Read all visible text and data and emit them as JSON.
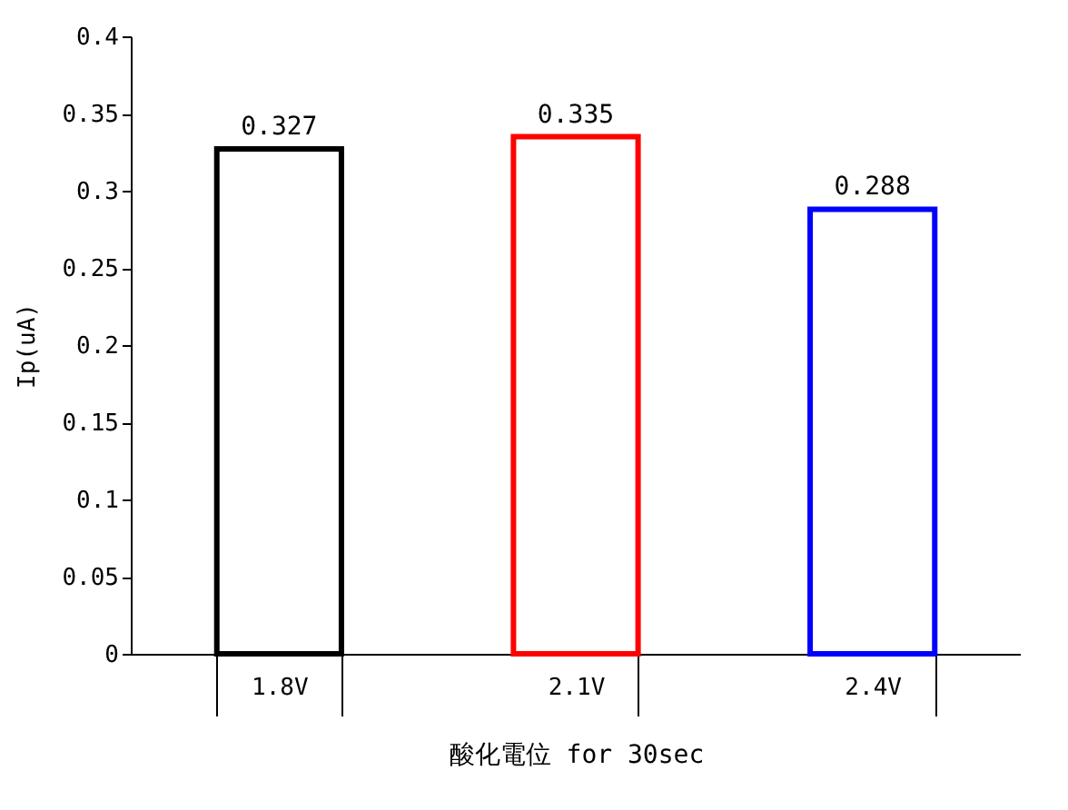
{
  "chart_data": {
    "type": "bar",
    "xlabel": "酸化電位 for 30sec",
    "ylabel": "Ip(uA)",
    "categories": [
      "1.8V",
      "2.1V",
      "2.4V"
    ],
    "values": [
      0.327,
      0.335,
      0.288
    ],
    "colors": [
      "#000000",
      "#ff0000",
      "#0000ff"
    ],
    "ylim": [
      0,
      0.4
    ],
    "yticks": [
      0,
      0.05,
      0.1,
      0.15,
      0.2,
      0.25,
      0.3,
      0.35,
      0.4
    ],
    "data_labels": true,
    "grid": false
  }
}
